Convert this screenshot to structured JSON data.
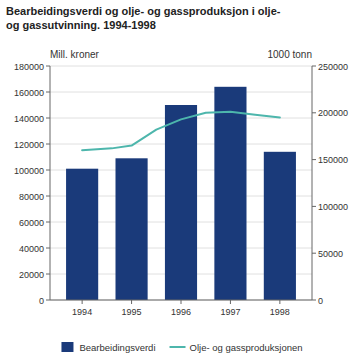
{
  "chart_data": {
    "type": "bar",
    "title": "Bearbeidingsverdi og olje- og gassproduksjon i olje-\nog gassutvinning. 1994-1998",
    "ylabel": "Mill. kroner",
    "y2label": "1000 tonn",
    "xlim": [
      1993.35,
      1998.65
    ],
    "xticks": [
      1994,
      1995,
      1996,
      1997,
      1998
    ],
    "ylim": [
      0,
      180000
    ],
    "yticks": [
      0,
      20000,
      40000,
      60000,
      80000,
      100000,
      120000,
      140000,
      160000,
      180000
    ],
    "y2lim": [
      0,
      250000
    ],
    "y2ticks": [
      0,
      50000,
      100000,
      150000,
      200000,
      250000
    ],
    "grid": true,
    "legend": "bottom",
    "series": [
      {
        "name": "Bearbeidingsverdi",
        "type": "bar",
        "color": "#1a3a7a",
        "x": [
          1994,
          1995,
          1996,
          1997,
          1998
        ],
        "values": [
          101000,
          109000,
          150000,
          164000,
          114000
        ]
      },
      {
        "name": "Olje- og gassproduksjonen",
        "type": "line",
        "axis": "y2",
        "color": "#4db6ac",
        "x": [
          1994,
          1994.6,
          1995,
          1995.5,
          1996,
          1996.5,
          1997,
          1997.5,
          1998
        ],
        "values": [
          160000,
          162000,
          165000,
          182000,
          193000,
          200000,
          201000,
          198000,
          195000
        ]
      }
    ]
  }
}
